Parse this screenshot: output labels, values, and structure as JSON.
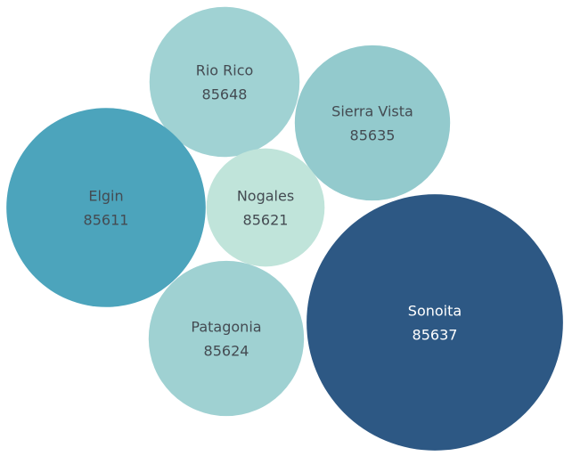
{
  "chart_data": {
    "type": "bubble",
    "categories": [
      "Rio Rico",
      "Sierra Vista",
      "Elgin",
      "Nogales",
      "Patagonia",
      "Sonoita"
    ],
    "labels": [
      "85648",
      "85635",
      "85611",
      "85621",
      "85624",
      "85637"
    ],
    "sizes": [
      71,
      76,
      125,
      44,
      76,
      207
    ],
    "colors": [
      "#a0d2d3",
      "#93cacd",
      "#4ca4bc",
      "#c0e4da",
      "#9fd1d2",
      "#2d5884"
    ]
  }
}
